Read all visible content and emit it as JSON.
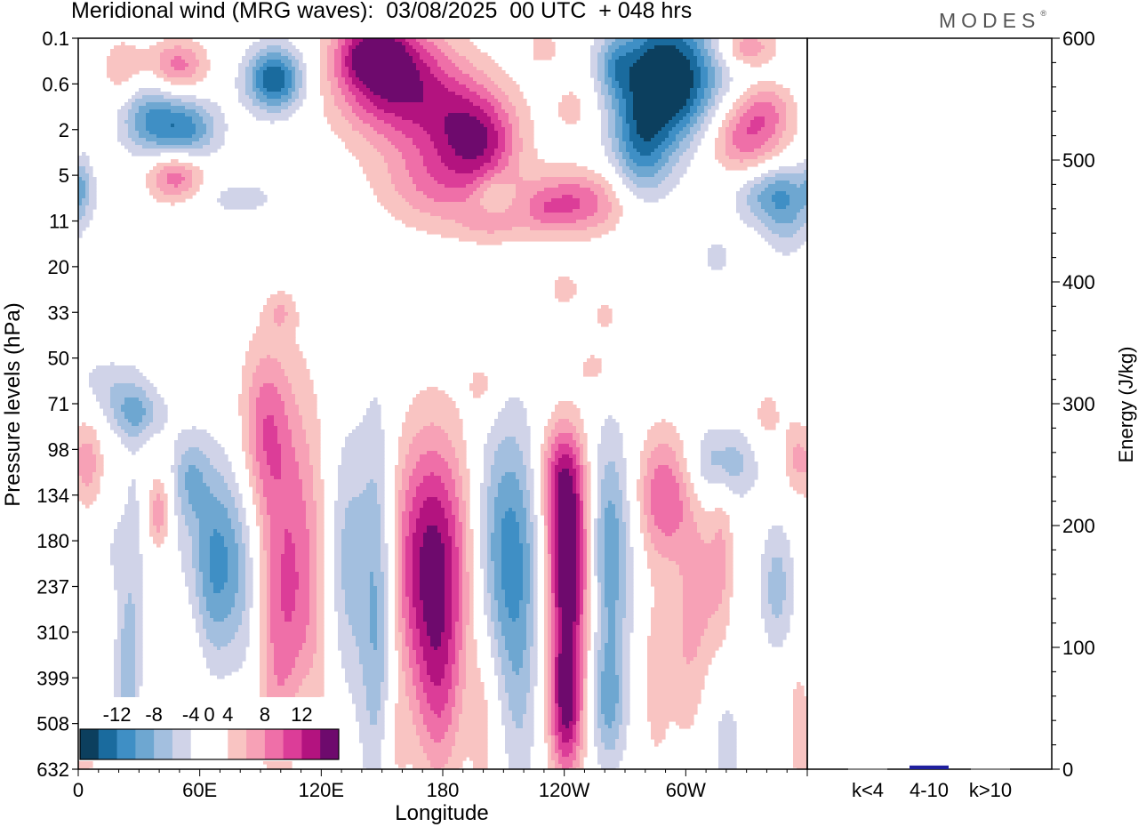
{
  "header": {
    "title": "Meridional wind (MRG waves):  03/08/2025  00 UTC  + 048 hrs",
    "brand": "MODES",
    "brand_mark": "®"
  },
  "colors": {
    "neg": [
      "#0c3f5e",
      "#1a6b9e",
      "#3f8fc5",
      "#6ea7d1",
      "#a3bfdf",
      "#d0d3e8"
    ],
    "pos": [
      "#f9c4c2",
      "#f7a1b6",
      "#ef6fa8",
      "#dc3d98",
      "#b3137f",
      "#6e0a6d"
    ],
    "bar": "#1f1f9e",
    "bar_baseline": "#8a8a8a"
  },
  "chart_data": [
    {
      "type": "heatmap",
      "title": "Meridional wind (MRG waves):  03/08/2025  00 UTC  + 048 hrs",
      "xlabel": "Longitude",
      "ylabel": "Pressure levels (hPa)",
      "x_ticks": [
        "0",
        "60E",
        "120E",
        "180",
        "120W",
        "60W"
      ],
      "x_tick_lons": [
        0,
        60,
        120,
        180,
        240,
        300
      ],
      "xlim": [
        0,
        360
      ],
      "y_levels": [
        "0.1",
        "0.6",
        "2",
        "5",
        "11",
        "20",
        "33",
        "50",
        "71",
        "98",
        "134",
        "180",
        "237",
        "310",
        "399",
        "508",
        "632"
      ],
      "colorbar": {
        "labels": [
          "-12",
          "-8",
          "-4",
          "0",
          "4",
          "8",
          "12"
        ],
        "levels": [
          -14,
          -12,
          -10,
          -8,
          -6,
          -4,
          -2,
          2,
          4,
          6,
          8,
          10,
          12,
          14
        ]
      },
      "blobs": [
        {
          "lon": 97,
          "lev": 0.9,
          "sl": 10,
          "sv": 0.5,
          "a": -12
        },
        {
          "lon": 49,
          "lev": 0.6,
          "sl": 10,
          "sv": 0.4,
          "a": 7
        },
        {
          "lon": 22,
          "lev": 0.7,
          "sl": 8,
          "sv": 0.5,
          "a": 4
        },
        {
          "lon": 33,
          "lev": 1.7,
          "sl": 10,
          "sv": 0.6,
          "a": -6
        },
        {
          "lon": 52,
          "lev": 2.0,
          "sl": 12,
          "sv": 0.5,
          "a": -9
        },
        {
          "lon": 5,
          "lev": 1.2,
          "sl": 5,
          "sv": 0.6,
          "a": -2
        },
        {
          "lon": 155,
          "lev": 0.9,
          "sl": 20,
          "sv": 0.9,
          "a": 12
        },
        {
          "lon": 145,
          "lev": 0.3,
          "sl": 12,
          "sv": 0.5,
          "a": 8
        },
        {
          "lon": 190,
          "lev": 1.8,
          "sl": 18,
          "sv": 0.8,
          "a": 8
        },
        {
          "lon": 180,
          "lev": 3.2,
          "sl": 22,
          "sv": 0.7,
          "a": 6
        },
        {
          "lon": 200,
          "lev": 2.3,
          "sl": 12,
          "sv": 0.6,
          "a": 5
        },
        {
          "lon": 245,
          "lev": 1.5,
          "sl": 8,
          "sv": 0.5,
          "a": 3
        },
        {
          "lon": 230,
          "lev": 0.2,
          "sl": 6,
          "sv": 0.3,
          "a": 3
        },
        {
          "lon": 290,
          "lev": 0.9,
          "sl": 18,
          "sv": 1.0,
          "a": -16
        },
        {
          "lon": 278,
          "lev": 2.5,
          "sl": 10,
          "sv": 0.8,
          "a": -7
        },
        {
          "lon": 265,
          "lev": 0.6,
          "sl": 6,
          "sv": 0.4,
          "a": -4
        },
        {
          "lon": 330,
          "lev": 0.2,
          "sl": 10,
          "sv": 0.3,
          "a": 6
        },
        {
          "lon": 330,
          "lev": 2.2,
          "sl": 14,
          "sv": 0.6,
          "a": 8
        },
        {
          "lon": 340,
          "lev": 1.5,
          "sl": 10,
          "sv": 0.4,
          "a": 4
        },
        {
          "lon": 345,
          "lev": 3.4,
          "sl": 14,
          "sv": 0.5,
          "a": -8
        },
        {
          "lon": 350,
          "lev": 4.2,
          "sl": 8,
          "sv": 0.5,
          "a": -3
        },
        {
          "lon": 48,
          "lev": 3.0,
          "sl": 10,
          "sv": 0.4,
          "a": 8
        },
        {
          "lon": 2,
          "lev": 3.1,
          "sl": 3,
          "sv": 0.5,
          "a": -3
        },
        {
          "lon": 80,
          "lev": 3.5,
          "sl": 16,
          "sv": 0.3,
          "a": -3
        },
        {
          "lon": 245,
          "lev": 3.6,
          "sl": 18,
          "sv": 0.5,
          "a": 8
        },
        {
          "lon": 205,
          "lev": 4.1,
          "sl": 12,
          "sv": 0.3,
          "a": 3
        },
        {
          "lon": 230,
          "lev": 3.8,
          "sl": 8,
          "sv": 0.3,
          "a": 2
        },
        {
          "lon": 205,
          "lev": 3.4,
          "sl": 6,
          "sv": 0.3,
          "a": -3
        },
        {
          "lon": 240,
          "lev": 5.5,
          "sl": 6,
          "sv": 0.3,
          "a": 3
        },
        {
          "lon": 260,
          "lev": 6.1,
          "sl": 4,
          "sv": 0.3,
          "a": 3
        },
        {
          "lon": 100,
          "lev": 6.0,
          "sl": 5,
          "sv": 0.3,
          "a": 3
        },
        {
          "lon": 315,
          "lev": 4.8,
          "sl": 5,
          "sv": 0.3,
          "a": -3
        },
        {
          "lon": 255,
          "lev": 7.2,
          "sl": 6,
          "sv": 0.3,
          "a": 3
        },
        {
          "lon": 15,
          "lev": 7.5,
          "sl": 12,
          "sv": 0.4,
          "a": -3
        },
        {
          "lon": 28,
          "lev": 8.2,
          "sl": 10,
          "sv": 0.4,
          "a": -6
        },
        {
          "lon": 5,
          "lev": 9.3,
          "sl": 5,
          "sv": 0.7,
          "a": 5
        },
        {
          "lon": 40,
          "lev": 10.4,
          "sl": 4,
          "sv": 0.6,
          "a": 6
        },
        {
          "lon": 18,
          "lev": 11.2,
          "sl": 4,
          "sv": 0.8,
          "a": -2
        },
        {
          "lon": 55,
          "lev": 13.0,
          "sl": 6,
          "sv": 2.5,
          "a": 3
        },
        {
          "lon": 70,
          "lev": 11.5,
          "sl": 14,
          "sv": 1.6,
          "a": -10
        },
        {
          "lon": 55,
          "lev": 9.6,
          "sl": 6,
          "sv": 0.7,
          "a": -5
        },
        {
          "lon": 85,
          "lev": 14.0,
          "sl": 6,
          "sv": 2.5,
          "a": -3
        },
        {
          "lon": 23,
          "lev": 14.0,
          "sl": 4,
          "sv": 1.2,
          "a": -4
        },
        {
          "lon": 102,
          "lev": 12.0,
          "sl": 16,
          "sv": 3.0,
          "a": 9
        },
        {
          "lon": 92,
          "lev": 8.5,
          "sl": 8,
          "sv": 1.2,
          "a": 5
        },
        {
          "lon": 132,
          "lev": 11.5,
          "sl": 8,
          "sv": 2.2,
          "a": -6
        },
        {
          "lon": 148,
          "lev": 12.5,
          "sl": 6,
          "sv": 3.0,
          "a": -7
        },
        {
          "lon": 175,
          "lev": 11.5,
          "sl": 14,
          "sv": 2.0,
          "a": 13
        },
        {
          "lon": 178,
          "lev": 14.5,
          "sl": 8,
          "sv": 1.5,
          "a": 5
        },
        {
          "lon": 212,
          "lev": 11.2,
          "sl": 12,
          "sv": 2.0,
          "a": -9
        },
        {
          "lon": 218,
          "lev": 14.5,
          "sl": 6,
          "sv": 2.0,
          "a": -3
        },
        {
          "lon": 242,
          "lev": 11.4,
          "sl": 8,
          "sv": 1.6,
          "a": 15
        },
        {
          "lon": 241,
          "lev": 14.6,
          "sl": 6,
          "sv": 1.2,
          "a": 12
        },
        {
          "lon": 238,
          "lev": 9.5,
          "sl": 8,
          "sv": 0.8,
          "a": 6
        },
        {
          "lon": 262,
          "lev": 11.2,
          "sl": 8,
          "sv": 1.8,
          "a": -8
        },
        {
          "lon": 262,
          "lev": 14.6,
          "sl": 6,
          "sv": 1.0,
          "a": -6
        },
        {
          "lon": 290,
          "lev": 10.0,
          "sl": 10,
          "sv": 1.0,
          "a": 8
        },
        {
          "lon": 308,
          "lev": 12.0,
          "sl": 8,
          "sv": 1.2,
          "a": 4
        },
        {
          "lon": 300,
          "lev": 13.8,
          "sl": 7,
          "sv": 1.4,
          "a": 3
        },
        {
          "lon": 318,
          "lev": 9.3,
          "sl": 12,
          "sv": 0.6,
          "a": -6
        },
        {
          "lon": 345,
          "lev": 12.0,
          "sl": 6,
          "sv": 1.0,
          "a": -5
        },
        {
          "lon": 320,
          "lev": 15.5,
          "sl": 6,
          "sv": 1.0,
          "a": -3
        },
        {
          "lon": 354,
          "lev": 9.2,
          "sl": 4,
          "sv": 0.6,
          "a": 4
        },
        {
          "lon": 340,
          "lev": 8.3,
          "sl": 6,
          "sv": 0.5,
          "a": 3
        },
        {
          "lon": 355,
          "lev": 15.0,
          "sl": 3,
          "sv": 1.0,
          "a": 3
        },
        {
          "lon": 200,
          "lev": 7.6,
          "sl": 6,
          "sv": 0.5,
          "a": 3
        },
        {
          "lon": 318,
          "lev": 11.0,
          "sl": 4,
          "sv": 1.5,
          "a": 3
        },
        {
          "lon": 3,
          "lev": 15.5,
          "sl": 4,
          "sv": 1.0,
          "a": 3
        },
        {
          "lon": 155,
          "lev": 15.5,
          "sl": 5,
          "sv": 1.0,
          "a": 3
        },
        {
          "lon": 200,
          "lev": 15.0,
          "sl": 5,
          "sv": 1.4,
          "a": 3
        },
        {
          "lon": 285,
          "lev": 14.0,
          "sl": 5,
          "sv": 1.5,
          "a": 3
        },
        {
          "lon": 110,
          "lev": 15.2,
          "sl": 6,
          "sv": 1.2,
          "a": -3
        },
        {
          "lon": 27,
          "lev": 12.0,
          "sl": 4,
          "sv": 2.5,
          "a": -3
        }
      ]
    },
    {
      "type": "bar",
      "ylabel": "Energy (J/kg)",
      "ylim": [
        0,
        600
      ],
      "y_ticks": [
        "0",
        "100",
        "200",
        "300",
        "400",
        "500",
        "600"
      ],
      "categories": [
        "k<4",
        "4-10",
        "k>10"
      ],
      "values": [
        0.5,
        3,
        0.5
      ]
    }
  ]
}
